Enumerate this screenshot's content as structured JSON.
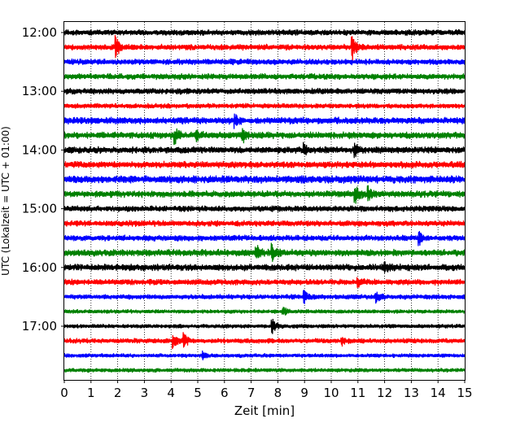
{
  "chart_data": {
    "type": "line",
    "subtype": "helicorder",
    "xlabel": "Zeit  [min]",
    "ylabel": "UTC (Lokalzeit = UTC + 01:00)",
    "xlim": [
      0,
      15
    ],
    "x_ticks": [
      0,
      1,
      2,
      3,
      4,
      5,
      6,
      7,
      8,
      9,
      10,
      11,
      12,
      13,
      14,
      15
    ],
    "x_tick_labels": [
      "0",
      "1",
      "2",
      "3",
      "4",
      "5",
      "6",
      "7",
      "8",
      "9",
      "10",
      "11",
      "12",
      "13",
      "14",
      "15"
    ],
    "y_tick_labels": [
      "12:00",
      "13:00",
      "14:00",
      "15:00",
      "16:00",
      "17:00"
    ],
    "grid": {
      "x": true,
      "style": "dotted"
    },
    "trace_interval_min": 15,
    "trace_colors": [
      "#000000",
      "#ff0000",
      "#0000ff",
      "#008000"
    ],
    "series": [
      {
        "start": "12:00",
        "amplitude": 0.3,
        "events": []
      },
      {
        "start": "12:15",
        "amplitude": 0.3,
        "events": [
          {
            "t": 1.95,
            "amp": 1.4
          },
          {
            "t": 10.8,
            "amp": 1.4
          }
        ]
      },
      {
        "start": "12:30",
        "amplitude": 0.3,
        "events": []
      },
      {
        "start": "12:45",
        "amplitude": 0.3,
        "events": []
      },
      {
        "start": "13:00",
        "amplitude": 0.3,
        "events": []
      },
      {
        "start": "13:15",
        "amplitude": 0.25,
        "events": []
      },
      {
        "start": "13:30",
        "amplitude": 0.35,
        "events": [
          {
            "t": 6.4,
            "amp": 0.7
          }
        ]
      },
      {
        "start": "13:45",
        "amplitude": 0.35,
        "events": [
          {
            "t": 4.15,
            "amp": 0.9
          },
          {
            "t": 4.95,
            "amp": 0.6
          },
          {
            "t": 6.7,
            "amp": 0.7
          }
        ]
      },
      {
        "start": "14:00",
        "amplitude": 0.35,
        "events": [
          {
            "t": 9.0,
            "amp": 0.6
          },
          {
            "t": 10.9,
            "amp": 0.9
          }
        ]
      },
      {
        "start": "14:15",
        "amplitude": 0.35,
        "events": []
      },
      {
        "start": "14:30",
        "amplitude": 0.4,
        "events": []
      },
      {
        "start": "14:45",
        "amplitude": 0.35,
        "events": [
          {
            "t": 10.9,
            "amp": 1.3
          },
          {
            "t": 11.4,
            "amp": 1.0
          }
        ]
      },
      {
        "start": "15:00",
        "amplitude": 0.3,
        "events": []
      },
      {
        "start": "15:15",
        "amplitude": 0.3,
        "events": []
      },
      {
        "start": "15:30",
        "amplitude": 0.3,
        "events": [
          {
            "t": 13.3,
            "amp": 0.8
          }
        ]
      },
      {
        "start": "15:45",
        "amplitude": 0.35,
        "events": [
          {
            "t": 7.2,
            "amp": 0.8
          },
          {
            "t": 7.8,
            "amp": 0.9
          }
        ]
      },
      {
        "start": "16:00",
        "amplitude": 0.35,
        "events": [
          {
            "t": 12.0,
            "amp": 0.6
          }
        ]
      },
      {
        "start": "16:15",
        "amplitude": 0.3,
        "events": [
          {
            "t": 11.0,
            "amp": 0.6
          }
        ]
      },
      {
        "start": "16:30",
        "amplitude": 0.25,
        "events": [
          {
            "t": 9.0,
            "amp": 0.7
          },
          {
            "t": 11.7,
            "amp": 0.8
          }
        ]
      },
      {
        "start": "16:45",
        "amplitude": 0.2,
        "events": [
          {
            "t": 8.2,
            "amp": 0.6
          }
        ]
      },
      {
        "start": "17:00",
        "amplitude": 0.2,
        "events": [
          {
            "t": 7.8,
            "amp": 1.0
          }
        ]
      },
      {
        "start": "17:15",
        "amplitude": 0.25,
        "events": [
          {
            "t": 4.1,
            "amp": 0.9
          },
          {
            "t": 4.5,
            "amp": 0.9
          },
          {
            "t": 10.4,
            "amp": 0.5
          }
        ]
      },
      {
        "start": "17:30",
        "amplitude": 0.2,
        "events": [
          {
            "t": 5.2,
            "amp": 0.5
          }
        ]
      },
      {
        "start": "17:45",
        "amplitude": 0.2,
        "events": []
      }
    ]
  }
}
